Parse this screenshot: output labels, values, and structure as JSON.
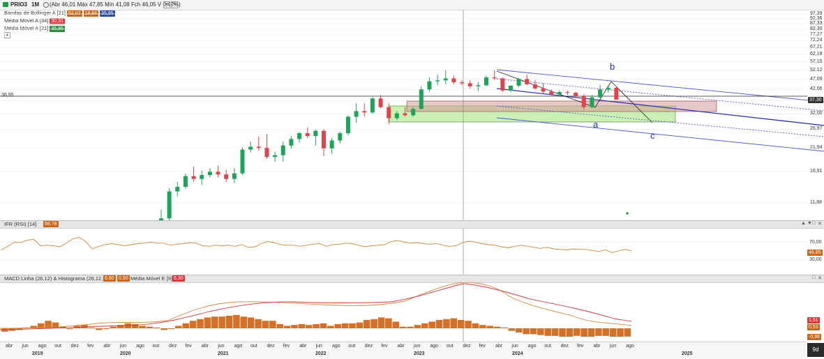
{
  "header": {
    "symbol": "PRIO3",
    "timeframe": "1M",
    "ohlc": "(Abr 46,01 Máx 47,85 Mín 41,08 Fch 46,05 V 0,42%)"
  },
  "legend": [
    {
      "label": "Bandas de Bollinger A [21]",
      "tags": [
        {
          "text": "52,07",
          "color": "#c8661a"
        },
        {
          "text": "19,84",
          "color": "#c8661a"
        },
        {
          "text": "35,95",
          "color": "#2c4aa0"
        }
      ]
    },
    {
      "label": "Média Móvel A [34]",
      "tags": [
        {
          "text": "30,31",
          "color": "#d9363e"
        }
      ]
    },
    {
      "label": "Média Móvel A [21]",
      "tags": [
        {
          "text": "35,95",
          "color": "#2e8b3a"
        }
      ]
    }
  ],
  "price_axis": [
    "97,39",
    "92,36",
    "87,33",
    "82,30",
    "77,27",
    "72,24",
    "67,21",
    "62,18",
    "57,15",
    "52,12",
    "47,09",
    "42,06",
    "37,03",
    "32,00",
    "26,97",
    "21,94",
    "16,91",
    "11,88"
  ],
  "price_badges": {
    "current": "37,30",
    "line_label": "38,95"
  },
  "wave_labels": [
    "a",
    "b",
    "c"
  ],
  "rsi": {
    "title": "IFR (RSI) [14]",
    "value_tag": "68,78",
    "axis": [
      "70,00",
      "30,00"
    ],
    "badge": "46,85"
  },
  "macd": {
    "title": "MACD Linha (26,12) & Histograma (26,12,9)",
    "tags": [
      "6,80",
      "0,50"
    ],
    "ma_title": "Média Móvel E [9]",
    "ma_tag": "6,30",
    "badges": [
      "1,51",
      "0,53",
      "-0,98"
    ]
  },
  "time_axis": {
    "months": [
      "abr",
      "jun",
      "ago",
      "out",
      "dez",
      "fev",
      "abr",
      "jun",
      "ago",
      "out",
      "dez",
      "fev",
      "abr",
      "jun",
      "ago",
      "out",
      "dez",
      "fev",
      "abr",
      "jun",
      "ago",
      "out",
      "dez",
      "fev",
      "abr",
      "jun",
      "ago",
      "out",
      "dez",
      "fev",
      "abr",
      "jun",
      "ago",
      "out",
      "dez",
      "fev",
      "abr",
      "jun",
      "ago"
    ],
    "years": [
      "2019",
      "2020",
      "2021",
      "2022",
      "2023",
      "2024",
      "2025"
    ]
  },
  "corner_label": "9d",
  "panel_buttons": [
    "▲",
    "▼",
    "□",
    "✕"
  ],
  "chart_data": {
    "type": "candlestick",
    "y_axis_scale": "log",
    "price_ticks": [
      97.39,
      92.36,
      87.33,
      82.3,
      77.27,
      72.24,
      67.21,
      62.18,
      57.15,
      52.12,
      47.09,
      42.06,
      37.03,
      32.0,
      26.97,
      21.94,
      16.91,
      11.88
    ],
    "candles_recent": [
      {
        "o": 7,
        "h": 11,
        "l": 6,
        "c": 10
      },
      {
        "o": 10,
        "h": 14,
        "l": 9.5,
        "c": 13.5
      },
      {
        "o": 13.5,
        "h": 15,
        "l": 12.8,
        "c": 14.2
      },
      {
        "o": 14.2,
        "h": 16.5,
        "l": 13.9,
        "c": 16
      },
      {
        "o": 16,
        "h": 17.8,
        "l": 15,
        "c": 15.5
      },
      {
        "o": 15.5,
        "h": 17,
        "l": 14.5,
        "c": 16.2
      },
      {
        "o": 16.2,
        "h": 17.5,
        "l": 15.8,
        "c": 16.8
      },
      {
        "o": 16.8,
        "h": 18,
        "l": 15.8,
        "c": 16.3
      },
      {
        "o": 16.3,
        "h": 17.2,
        "l": 15,
        "c": 15.5
      },
      {
        "o": 15.5,
        "h": 17.5,
        "l": 14.8,
        "c": 16.5
      },
      {
        "o": 16.5,
        "h": 22,
        "l": 16.2,
        "c": 21.5
      },
      {
        "o": 21.5,
        "h": 23.5,
        "l": 20.8,
        "c": 22.2
      },
      {
        "o": 22.2,
        "h": 24.8,
        "l": 21.2,
        "c": 21.9
      },
      {
        "o": 21.9,
        "h": 25.5,
        "l": 19.4,
        "c": 19.8
      },
      {
        "o": 19.8,
        "h": 21,
        "l": 18.8,
        "c": 20.2
      },
      {
        "o": 20.2,
        "h": 23.5,
        "l": 18.8,
        "c": 22.5
      },
      {
        "o": 22.5,
        "h": 25,
        "l": 21.8,
        "c": 24.2
      },
      {
        "o": 24.2,
        "h": 26.2,
        "l": 23.2,
        "c": 25.8
      },
      {
        "o": 25.8,
        "h": 27.5,
        "l": 24.5,
        "c": 25
      },
      {
        "o": 25,
        "h": 26.8,
        "l": 22.5,
        "c": 26.5
      },
      {
        "o": 26.5,
        "h": 27,
        "l": 20,
        "c": 21.8
      },
      {
        "o": 21.8,
        "h": 24.5,
        "l": 20.5,
        "c": 23.8
      },
      {
        "o": 23.8,
        "h": 26.2,
        "l": 23,
        "c": 25.8
      },
      {
        "o": 25.8,
        "h": 31.5,
        "l": 25.2,
        "c": 31
      },
      {
        "o": 31,
        "h": 36,
        "l": 29,
        "c": 33
      },
      {
        "o": 33,
        "h": 36,
        "l": 31,
        "c": 32.5
      },
      {
        "o": 32.5,
        "h": 38.5,
        "l": 32,
        "c": 38
      },
      {
        "o": 38,
        "h": 39.5,
        "l": 34,
        "c": 34.5
      },
      {
        "o": 34.5,
        "h": 36,
        "l": 28.5,
        "c": 30.5
      },
      {
        "o": 30.5,
        "h": 33,
        "l": 29.8,
        "c": 32.2
      },
      {
        "o": 32.2,
        "h": 34.5,
        "l": 31,
        "c": 31.5
      },
      {
        "o": 31.5,
        "h": 34.5,
        "l": 31,
        "c": 33.8
      },
      {
        "o": 33.8,
        "h": 43.5,
        "l": 33.5,
        "c": 42
      },
      {
        "o": 42,
        "h": 48,
        "l": 41,
        "c": 46
      },
      {
        "o": 46,
        "h": 49.5,
        "l": 44,
        "c": 46.5
      },
      {
        "o": 46.5,
        "h": 52,
        "l": 44.5,
        "c": 47.5
      },
      {
        "o": 47.5,
        "h": 49,
        "l": 44.5,
        "c": 45.5
      },
      {
        "o": 45.5,
        "h": 46.5,
        "l": 44,
        "c": 45
      },
      {
        "o": 45,
        "h": 46.5,
        "l": 42.5,
        "c": 43.5
      },
      {
        "o": 43.5,
        "h": 45.5,
        "l": 41.2,
        "c": 44
      },
      {
        "o": 44,
        "h": 49,
        "l": 43.5,
        "c": 48
      },
      {
        "o": 48,
        "h": 52,
        "l": 46.8,
        "c": 47.5
      },
      {
        "o": 47.5,
        "h": 48,
        "l": 40.8,
        "c": 41.5
      },
      {
        "o": 41.5,
        "h": 44,
        "l": 40.8,
        "c": 43.8
      },
      {
        "o": 43.8,
        "h": 47.8,
        "l": 43.2,
        "c": 47.2
      },
      {
        "o": 47.2,
        "h": 49.5,
        "l": 44,
        "c": 44.5
      },
      {
        "o": 44.5,
        "h": 46.5,
        "l": 42,
        "c": 42.5
      },
      {
        "o": 42.5,
        "h": 45,
        "l": 40,
        "c": 41
      },
      {
        "o": 41,
        "h": 42,
        "l": 39.2,
        "c": 39.8
      },
      {
        "o": 39.8,
        "h": 41.5,
        "l": 39,
        "c": 40.8
      },
      {
        "o": 40.8,
        "h": 41.5,
        "l": 39.5,
        "c": 40.5
      },
      {
        "o": 40.5,
        "h": 41,
        "l": 38.5,
        "c": 39
      },
      {
        "o": 39,
        "h": 40,
        "l": 33.5,
        "c": 34.5
      },
      {
        "o": 34.5,
        "h": 39.5,
        "l": 34,
        "c": 38.5
      },
      {
        "o": 38.5,
        "h": 44,
        "l": 38,
        "c": 42
      },
      {
        "o": 42,
        "h": 44,
        "l": 40.5,
        "c": 42.8
      },
      {
        "o": 42.8,
        "h": 43,
        "l": 37.5,
        "c": 37.5
      }
    ],
    "rsi": [
      54,
      61,
      69,
      68,
      73,
      74,
      62,
      63,
      62,
      60,
      67,
      75,
      78,
      70,
      56,
      61,
      64,
      66,
      64,
      62,
      64,
      66,
      67,
      69,
      67,
      67,
      63,
      65,
      66,
      68,
      67,
      62,
      61,
      63,
      62,
      63,
      61,
      64,
      59,
      60,
      66,
      70,
      68,
      64,
      63,
      63,
      61,
      63,
      65,
      66,
      61,
      64,
      65,
      67,
      66,
      63,
      60,
      62,
      63,
      64,
      70,
      72,
      69,
      67,
      68,
      66,
      65,
      66,
      63,
      61,
      62,
      68,
      71,
      69,
      66,
      64,
      63,
      60,
      58,
      61,
      63,
      61,
      59,
      57,
      59,
      56,
      55,
      54,
      56,
      55,
      55,
      53,
      51,
      54,
      49,
      52,
      55,
      52
    ],
    "macd_hist": [
      -0.4,
      -0.3,
      -0.2,
      0.1,
      0.3,
      0.6,
      0.9,
      0.7,
      0.2,
      -0.1,
      0.3,
      0.4,
      0.1,
      -0.2,
      -0.1,
      0.2,
      0.4,
      0.6,
      0.5,
      0.3,
      0.2,
      0.1,
      -0.2,
      -0.1,
      0.3,
      0.6,
      0.9,
      1.1,
      1.3,
      1.4,
      1.4,
      1.5,
      1.6,
      1.4,
      1.3,
      1.1,
      0.9,
      0.9,
      0.5,
      0.3,
      0.4,
      0.5,
      0.4,
      0.5,
      0.6,
      0.3,
      0.5,
      0.6,
      0.6,
      0.7,
      1.0,
      1.1,
      1.3,
      1.2,
      0.8,
      0.2,
      0.2,
      0.4,
      0.6,
      0.8,
      1.0,
      1.1,
      1.2,
      1.0,
      0.9,
      0.6,
      0.4,
      0.3,
      0.2,
      0.1,
      -0.3,
      -0.5,
      -0.7,
      -0.7,
      -0.8,
      -0.9,
      -0.9,
      -1.0,
      -1.0,
      -0.9,
      -1.0,
      -1.0,
      -0.9,
      -0.9,
      -1.0,
      -1.0,
      -0.98
    ],
    "legend": [
      "Bandas de Bollinger A [21]",
      "Média Móvel A [34]",
      "Média Móvel A [21]"
    ]
  }
}
